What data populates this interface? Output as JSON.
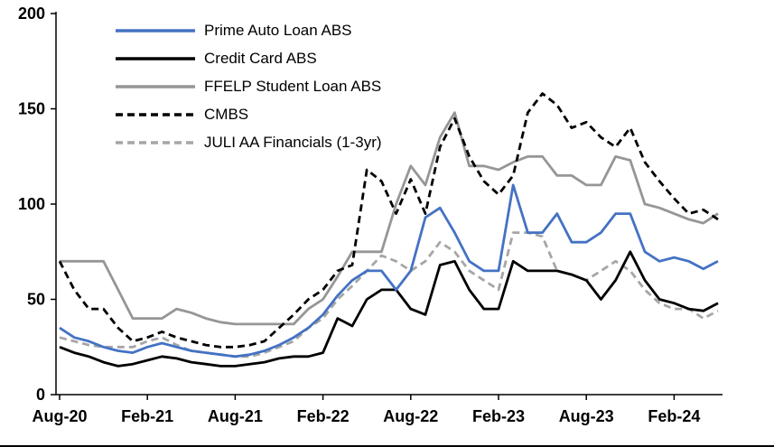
{
  "chart_data": {
    "type": "line",
    "title": "",
    "xlabel": "",
    "ylabel": "",
    "ylim": [
      0,
      200
    ],
    "y_ticks": [
      0,
      50,
      100,
      150,
      200
    ],
    "x_labels": [
      "Aug-20",
      "Feb-21",
      "Aug-21",
      "Feb-22",
      "Aug-22",
      "Feb-23",
      "Aug-23",
      "Feb-24"
    ],
    "x_tick_indices": [
      0,
      6,
      12,
      18,
      24,
      30,
      36,
      42
    ],
    "x_frequency": "monthly, Aug-2020 through May-2024",
    "grid": false,
    "legend_position": "top-left-inside",
    "axis_color": "#000000",
    "background_color": "#ffffff",
    "series": [
      {
        "name": "Prime Auto Loan ABS",
        "color": "#4472C4",
        "dash": "solid",
        "values": [
          35,
          30,
          28,
          25,
          23,
          22,
          25,
          27,
          25,
          23,
          22,
          21,
          20,
          21,
          23,
          26,
          30,
          35,
          42,
          52,
          60,
          65,
          65,
          55,
          65,
          93,
          98,
          85,
          70,
          65,
          65,
          110,
          85,
          85,
          95,
          80,
          80,
          85,
          95,
          95,
          75,
          70,
          72,
          70,
          66,
          70
        ]
      },
      {
        "name": "Credit Card ABS",
        "color": "#000000",
        "dash": "solid",
        "values": [
          25,
          22,
          20,
          17,
          15,
          16,
          18,
          20,
          19,
          17,
          16,
          15,
          15,
          16,
          17,
          19,
          20,
          20,
          22,
          40,
          36,
          50,
          55,
          55,
          45,
          42,
          68,
          70,
          55,
          45,
          45,
          70,
          65,
          65,
          65,
          63,
          60,
          50,
          60,
          75,
          60,
          50,
          48,
          45,
          44,
          48
        ]
      },
      {
        "name": "FFELP Student Loan ABS",
        "color": "#969696",
        "dash": "solid",
        "values": [
          70,
          70,
          70,
          70,
          55,
          40,
          40,
          40,
          45,
          43,
          40,
          38,
          37,
          37,
          37,
          37,
          37,
          45,
          50,
          62,
          75,
          75,
          75,
          100,
          120,
          110,
          135,
          148,
          120,
          120,
          118,
          122,
          125,
          125,
          115,
          115,
          110,
          110,
          125,
          123,
          100,
          98,
          95,
          92,
          90,
          95
        ]
      },
      {
        "name": "CMBS",
        "color": "#000000",
        "dash": "dashed",
        "values": [
          70,
          55,
          45,
          45,
          35,
          28,
          30,
          33,
          30,
          28,
          26,
          25,
          25,
          26,
          28,
          35,
          42,
          50,
          55,
          65,
          68,
          118,
          112,
          95,
          113,
          95,
          130,
          145,
          125,
          112,
          105,
          115,
          148,
          158,
          152,
          140,
          143,
          135,
          130,
          140,
          122,
          112,
          103,
          95,
          97,
          92
        ]
      },
      {
        "name": "JULI AA Financials (1-3yr)",
        "color": "#A6A6A6",
        "dash": "dashed",
        "values": [
          30,
          28,
          26,
          25,
          25,
          25,
          28,
          30,
          26,
          23,
          22,
          21,
          20,
          20,
          22,
          25,
          28,
          35,
          40,
          50,
          57,
          65,
          73,
          70,
          65,
          70,
          80,
          75,
          65,
          60,
          55,
          85,
          85,
          83,
          65,
          63,
          60,
          65,
          70,
          65,
          55,
          48,
          45,
          45,
          40,
          44
        ]
      }
    ]
  }
}
